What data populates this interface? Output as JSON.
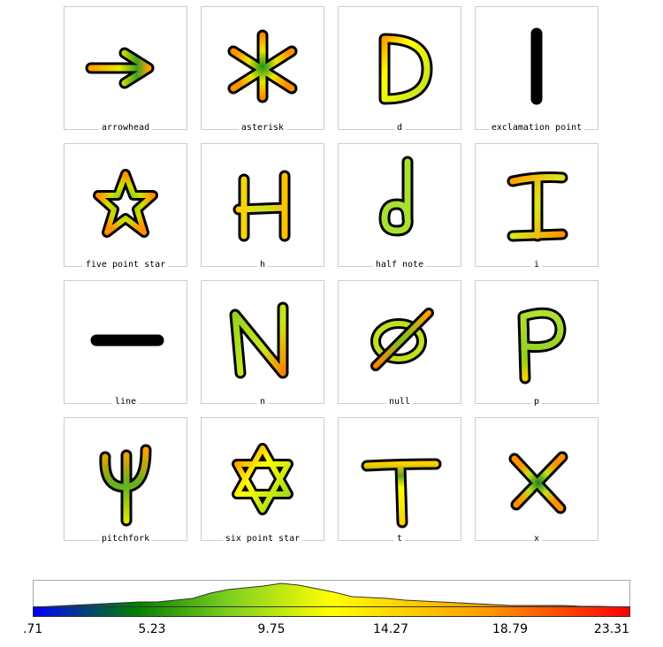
{
  "glyphs": [
    {
      "label": "arrowhead"
    },
    {
      "label": "asterisk"
    },
    {
      "label": "d"
    },
    {
      "label": "exclamation point"
    },
    {
      "label": "five point star"
    },
    {
      "label": "h"
    },
    {
      "label": "half note"
    },
    {
      "label": "i"
    },
    {
      "label": "line"
    },
    {
      "label": "n"
    },
    {
      "label": "null"
    },
    {
      "label": "p"
    },
    {
      "label": "pitchfork"
    },
    {
      "label": "six point star"
    },
    {
      "label": "t"
    },
    {
      "label": "x"
    }
  ],
  "colorbar": {
    "ticks": [
      ".71",
      "5.23",
      "9.75",
      "14.27",
      "18.79",
      "23.31"
    ],
    "colors": [
      "#0000ff",
      "#008000",
      "#80d020",
      "#ffff00",
      "#ffa000",
      "#ff0000"
    ]
  }
}
